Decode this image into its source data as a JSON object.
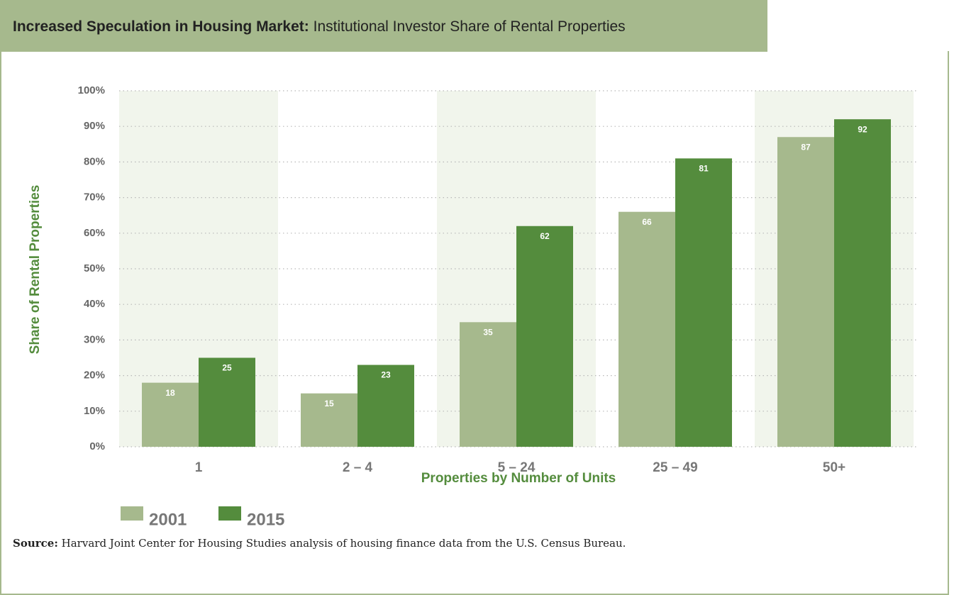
{
  "chart_data": {
    "type": "bar",
    "title": "Increased Speculation in Housing Market:",
    "subtitle": "Institutional Investor Share of Rental Properties",
    "y_label": "Share of Rental Properties",
    "x_label": "Properties by Number of Units",
    "categories": [
      "1",
      "2 – 4",
      "5 – 24",
      "25 – 49",
      "50+"
    ],
    "series": [
      {
        "name": "2001",
        "color": "#a6b98d",
        "values": [
          18,
          15,
          35,
          66,
          87
        ]
      },
      {
        "name": "2015",
        "color": "#548c3d",
        "values": [
          25,
          23,
          62,
          81,
          92
        ]
      }
    ],
    "ylim": [
      0,
      100
    ],
    "yticks": [
      {
        "value": 0,
        "label": "0%"
      },
      {
        "value": 10,
        "label": "10%"
      },
      {
        "value": 20,
        "label": "20%"
      },
      {
        "value": 30,
        "label": "30%"
      },
      {
        "value": 40,
        "label": "40%"
      },
      {
        "value": 50,
        "label": "50%"
      },
      {
        "value": 60,
        "label": "60%"
      },
      {
        "value": 70,
        "label": "70%"
      },
      {
        "value": 80,
        "label": "80%"
      },
      {
        "value": 90,
        "label": "90%"
      },
      {
        "value": 100,
        "label": "100%"
      }
    ],
    "grid": true,
    "legend": "bottom-left",
    "source_label": "Source:",
    "source": "Harvard Joint Center for Housing Studies analysis of housing finance data from the U.S. Census Bureau."
  }
}
